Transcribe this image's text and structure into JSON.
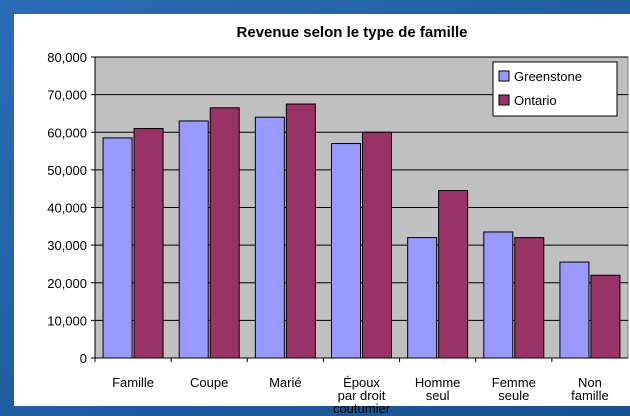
{
  "chart_data": {
    "type": "bar",
    "title": "Revenue selon le type de famille",
    "categories": [
      "Famille",
      "Coupe",
      "Marié",
      "Époux\npar droit\ncoutumier",
      "Homme\nseul",
      "Femme\nseule",
      "Non\nfamille"
    ],
    "series": [
      {
        "name": "Greenstone",
        "color": "#9999ff",
        "values": [
          58500,
          63000,
          64000,
          57000,
          32000,
          33500,
          25500
        ]
      },
      {
        "name": "Ontario",
        "color": "#993366",
        "values": [
          61000,
          66500,
          67500,
          60000,
          44500,
          32000,
          22000
        ]
      }
    ],
    "ylim": [
      0,
      80000
    ],
    "yticks": [
      0,
      {
        "value": 10000,
        "label": "10,000"
      },
      {
        "value": 20000,
        "label": "20,000"
      },
      {
        "value": 30000,
        "label": "30,000"
      },
      {
        "value": 40000,
        "label": "40,000"
      },
      {
        "value": 50000,
        "label": "50,000"
      },
      {
        "value": 60000,
        "label": "60,000"
      },
      {
        "value": 70000,
        "label": "70,000"
      },
      {
        "value": 80000,
        "label": "80,000"
      }
    ],
    "grid": true,
    "legend": "top-right"
  }
}
